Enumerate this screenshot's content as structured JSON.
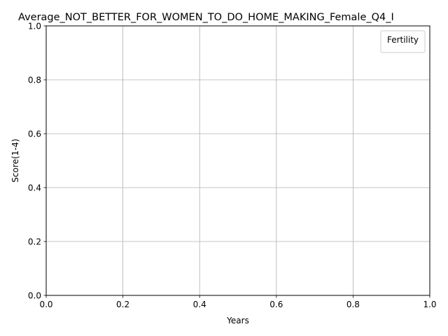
{
  "chart_data": {
    "type": "line",
    "title": "Average_NOT_BETTER_FOR_WOMEN_TO_DO_HOME_MAKING_Female_Q4_I",
    "xlabel": "Years",
    "ylabel": "Score(1-4)",
    "xlim": [
      0.0,
      1.0
    ],
    "ylim": [
      0.0,
      1.0
    ],
    "xticks": [
      "0.0",
      "0.2",
      "0.4",
      "0.6",
      "0.8",
      "1.0"
    ],
    "yticks": [
      "0.0",
      "0.2",
      "0.4",
      "0.6",
      "0.8",
      "1.0"
    ],
    "grid": true,
    "legend": {
      "title": "Fertility",
      "placement": "top-right",
      "entries": []
    },
    "series": []
  }
}
